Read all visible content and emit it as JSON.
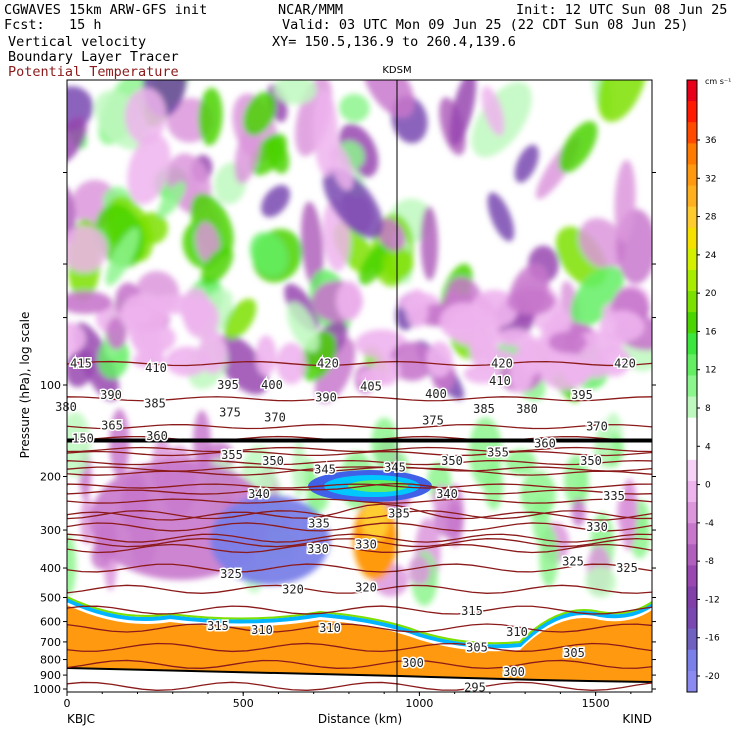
{
  "header": {
    "left1": "CGWAVES 15km ARW-GFS init",
    "left2": "Fcst:   15 h",
    "center1": "NCAR/MMM",
    "center2": "Valid: 03 UTC Mon 09 Jun 25 (22 CDT Sun 08 Jun 25)",
    "center3": "XY= 150.5,136.9 to 260.4,139.6",
    "right1": "Init: 12 UTC Sun 08 Jun 25",
    "field1": "Vertical velocity",
    "field2": "Boundary Layer Tracer",
    "field3": "Potential Temperature",
    "field3_color": "#8b1a1a"
  },
  "chart_data": {
    "type": "heatmap",
    "title": "Vertical velocity",
    "marker_label": "KDSM",
    "marker_distance_km": 940,
    "xlabel": "Distance (km)",
    "ylabel": "Pressure (hPa), log scale",
    "xlim": [
      0,
      1660
    ],
    "x_ticks": [
      0,
      500,
      1000,
      1500
    ],
    "x_end_labels": [
      "KBJC",
      "KIND"
    ],
    "y_ticks": [
      100,
      200,
      300,
      400,
      500,
      600,
      700,
      800,
      900,
      1000
    ],
    "y_scale": "log",
    "colorbar": {
      "units": "cm s⁻¹",
      "labels": [
        36,
        32,
        28,
        24,
        20,
        16,
        12,
        8,
        4,
        0,
        -4,
        -8,
        -12,
        -16,
        -20
      ],
      "colors": [
        "#e8001a",
        "#ff1a00",
        "#ff4a00",
        "#ff7a00",
        "#ff9a10",
        "#ffb020",
        "#ffcc30",
        "#f5e000",
        "#d2f000",
        "#a8ec00",
        "#7ce000",
        "#4ad400",
        "#3ce63c",
        "#63ee63",
        "#8df58d",
        "#bef8be",
        "#ffffff",
        "#ffffff",
        "#f6d2f6",
        "#eeb4ee",
        "#dc96dc",
        "#c878cc",
        "#b060bc",
        "#9848b0",
        "#8040a8",
        "#7848b0",
        "#7060c0",
        "#7a80e8",
        "#8a8af0"
      ]
    },
    "theta_labels": [
      {
        "v": "415",
        "x": 81,
        "p": 85
      },
      {
        "v": "410",
        "x": 156,
        "p": 88
      },
      {
        "v": "420",
        "x": 328,
        "p": 85
      },
      {
        "v": "420",
        "x": 502,
        "p": 85
      },
      {
        "v": "420",
        "x": 625,
        "p": 85
      },
      {
        "v": "380",
        "x": 66,
        "p": 118
      },
      {
        "v": "390",
        "x": 111,
        "p": 108
      },
      {
        "v": "385",
        "x": 155,
        "p": 115
      },
      {
        "v": "395",
        "x": 228,
        "p": 100
      },
      {
        "v": "400",
        "x": 272,
        "p": 100
      },
      {
        "v": "390",
        "x": 326,
        "p": 110
      },
      {
        "v": "405",
        "x": 371,
        "p": 101
      },
      {
        "v": "400",
        "x": 436,
        "p": 107
      },
      {
        "v": "410",
        "x": 500,
        "p": 97
      },
      {
        "v": "385",
        "x": 484,
        "p": 120
      },
      {
        "v": "380",
        "x": 527,
        "p": 120
      },
      {
        "v": "395",
        "x": 582,
        "p": 108
      },
      {
        "v": "375",
        "x": 230,
        "p": 123
      },
      {
        "v": "370",
        "x": 275,
        "p": 128
      },
      {
        "v": "375",
        "x": 433,
        "p": 131
      },
      {
        "v": "370",
        "x": 597,
        "p": 137
      },
      {
        "v": "365",
        "x": 112,
        "p": 136
      },
      {
        "v": "360",
        "x": 157,
        "p": 147
      },
      {
        "v": "355",
        "x": 232,
        "p": 170
      },
      {
        "v": "350",
        "x": 273,
        "p": 178
      },
      {
        "v": "345",
        "x": 325,
        "p": 190
      },
      {
        "v": "345",
        "x": 395,
        "p": 187
      },
      {
        "v": "350",
        "x": 452,
        "p": 178
      },
      {
        "v": "355",
        "x": 498,
        "p": 167
      },
      {
        "v": "360",
        "x": 545,
        "p": 156
      },
      {
        "v": "350",
        "x": 591,
        "p": 178
      },
      {
        "v": "340",
        "x": 259,
        "p": 228
      },
      {
        "v": "340",
        "x": 447,
        "p": 228
      },
      {
        "v": "335",
        "x": 614,
        "p": 232
      },
      {
        "v": "335",
        "x": 319,
        "p": 286
      },
      {
        "v": "335",
        "x": 399,
        "p": 265
      },
      {
        "v": "330",
        "x": 318,
        "p": 346
      },
      {
        "v": "330",
        "x": 366,
        "p": 335
      },
      {
        "v": "330",
        "x": 597,
        "p": 293
      },
      {
        "v": "325",
        "x": 231,
        "p": 418
      },
      {
        "v": "325",
        "x": 573,
        "p": 380
      },
      {
        "v": "325",
        "x": 627,
        "p": 400
      },
      {
        "v": "320",
        "x": 293,
        "p": 470
      },
      {
        "v": "320",
        "x": 366,
        "p": 463
      },
      {
        "v": "315",
        "x": 218,
        "p": 620
      },
      {
        "v": "315",
        "x": 472,
        "p": 554
      },
      {
        "v": "310",
        "x": 262,
        "p": 640
      },
      {
        "v": "310",
        "x": 330,
        "p": 630
      },
      {
        "v": "310",
        "x": 517,
        "p": 650
      },
      {
        "v": "305",
        "x": 477,
        "p": 730
      },
      {
        "v": "305",
        "x": 574,
        "p": 760
      },
      {
        "v": "300",
        "x": 413,
        "p": 820
      },
      {
        "v": "300",
        "x": 514,
        "p": 880
      },
      {
        "v": "295",
        "x": 475,
        "p": 990
      },
      {
        "v": "150",
        "x": 83,
        "p": 150
      }
    ]
  }
}
